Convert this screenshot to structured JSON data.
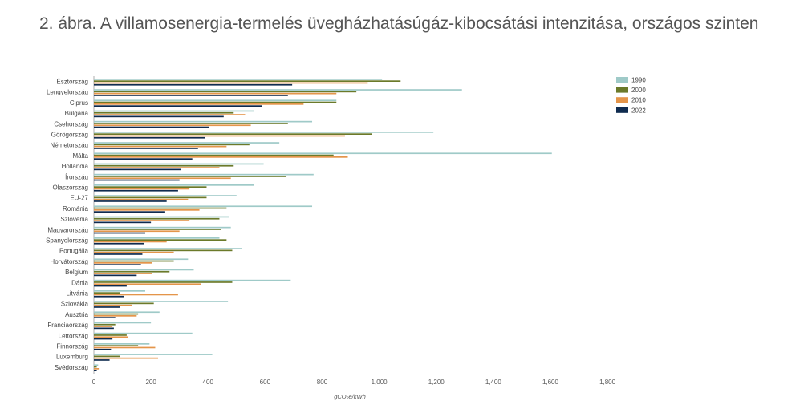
{
  "title": "2. ábra. A villamosenergia-termelés üvegházhatásúgáz-kibocsátási intenzitása, országos szinten",
  "chart_data": {
    "type": "bar",
    "orientation": "horizontal",
    "title": "2. ábra. A villamosenergia-termelés üvegházhatásúgáz-kibocsátási intenzitása, országos szinten",
    "xlabel": "gCO₂e/kWh",
    "ylabel": "",
    "xlim": [
      0,
      1800
    ],
    "xticks": [
      "0",
      "200",
      "400",
      "600",
      "800",
      "1,000",
      "1,200",
      "1,400",
      "1,600",
      "1,800"
    ],
    "xtick_values": [
      0,
      200,
      400,
      600,
      800,
      1000,
      1200,
      1400,
      1600,
      1800
    ],
    "grid": false,
    "legend_position": "top-right",
    "categories": [
      "Észtország",
      "Lengyelország",
      "Ciprus",
      "Bulgária",
      "Csehország",
      "Görögország",
      "Németország",
      "Málta",
      "Hollandia",
      "Írország",
      "Olaszország",
      "EU-27",
      "Románia",
      "Szlovénia",
      "Magyarország",
      "Spanyolország",
      "Portugália",
      "Horvátország",
      "Belgium",
      "Dánia",
      "Litvánia",
      "Szlovákia",
      "Ausztria",
      "Franciaország",
      "Lettország",
      "Finnország",
      "Luxemburg",
      "Svédország"
    ],
    "series": [
      {
        "name": "1990",
        "color": "#9fcac8",
        "values": [
          1010,
          1290,
          850,
          560,
          765,
          1190,
          650,
          1605,
          595,
          770,
          560,
          500,
          765,
          475,
          480,
          440,
          520,
          330,
          350,
          690,
          180,
          470,
          230,
          200,
          345,
          195,
          415,
          15
        ]
      },
      {
        "name": "2000",
        "color": "#6b7a2a",
        "values": [
          1075,
          920,
          850,
          490,
          680,
          975,
          545,
          840,
          490,
          675,
          395,
          395,
          465,
          440,
          445,
          465,
          485,
          280,
          265,
          485,
          90,
          210,
          155,
          75,
          115,
          155,
          90,
          10
        ]
      },
      {
        "name": "2010",
        "color": "#e4954a",
        "values": [
          960,
          850,
          735,
          530,
          550,
          880,
          465,
          890,
          440,
          480,
          335,
          330,
          370,
          335,
          300,
          255,
          280,
          205,
          205,
          375,
          295,
          135,
          150,
          65,
          120,
          215,
          225,
          20
        ]
      },
      {
        "name": "2022",
        "color": "#0f2b4f",
        "values": [
          695,
          680,
          590,
          455,
          405,
          390,
          365,
          345,
          305,
          300,
          295,
          255,
          250,
          200,
          180,
          175,
          170,
          165,
          150,
          115,
          105,
          90,
          75,
          70,
          65,
          60,
          55,
          10
        ]
      }
    ]
  }
}
